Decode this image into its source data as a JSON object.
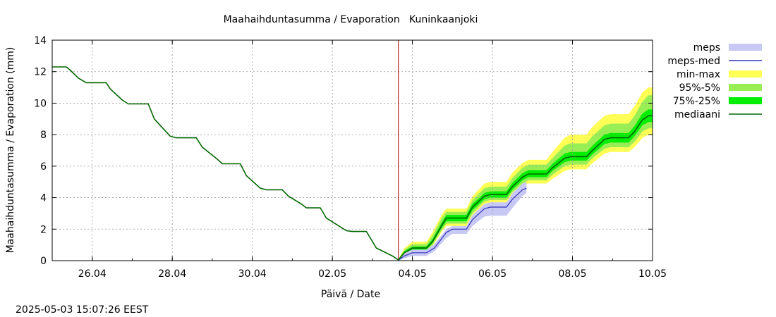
{
  "chart_data": {
    "type": "area",
    "title": "Maahaihduntasumma / Evaporation   Kuninkaanjoki",
    "xlabel": "Päivä / Date",
    "ylabel": "Maahaihduntasumma / Evaporation (mm)",
    "ylim": [
      0,
      14
    ],
    "yticks": [
      "0",
      "2",
      "4",
      "6",
      "8",
      "10",
      "12",
      "14"
    ],
    "xlim_days": [
      0,
      15
    ],
    "xticks": [
      {
        "day": 1,
        "label": "26.04"
      },
      {
        "day": 3,
        "label": "28.04"
      },
      {
        "day": 5,
        "label": "30.04"
      },
      {
        "day": 7,
        "label": "02.05"
      },
      {
        "day": 9,
        "label": "04.05"
      },
      {
        "day": 11,
        "label": "06.05"
      },
      {
        "day": 13,
        "label": "08.05"
      },
      {
        "day": 15,
        "label": "10.05"
      }
    ],
    "grid": true,
    "forecast_start_day": 8.65,
    "legend": [
      "meps",
      "meps-med",
      "min-max",
      "95%-5%",
      "75%-25%",
      "mediaani"
    ],
    "colors": {
      "meps": "#c8c8f5",
      "meps_med": "#3333bb",
      "minmax": "#ffff55",
      "p95": "#99ee55",
      "p75": "#00ee00",
      "median": "#006600",
      "now": "#aa0000"
    },
    "history": {
      "x": [
        0,
        0.35,
        0.45,
        0.65,
        0.85,
        1.35,
        1.45,
        1.75,
        1.9,
        2.4,
        2.55,
        2.95,
        3.1,
        3.6,
        3.75,
        4.1,
        4.25,
        4.7,
        4.85,
        5.2,
        5.35,
        5.75,
        5.9,
        6.25,
        6.35,
        6.7,
        6.85,
        7.35,
        7.5,
        7.85,
        8.1,
        8.5,
        8.65
      ],
      "y": [
        12.3,
        12.3,
        12.1,
        11.6,
        11.3,
        11.3,
        10.9,
        10.2,
        9.95,
        9.95,
        9.0,
        7.9,
        7.8,
        7.8,
        7.2,
        6.5,
        6.15,
        6.15,
        5.4,
        4.6,
        4.5,
        4.5,
        4.1,
        3.55,
        3.35,
        3.35,
        2.7,
        1.9,
        1.85,
        1.85,
        0.8,
        0.3,
        0.05
      ]
    },
    "forecast": {
      "x": [
        8.65,
        8.8,
        9.0,
        9.35,
        9.5,
        9.75,
        9.85,
        10.35,
        10.5,
        10.8,
        10.95,
        11.35,
        11.5,
        11.75,
        11.9,
        12.35,
        12.5,
        12.8,
        12.95,
        13.35,
        13.5,
        13.8,
        13.95,
        14.4,
        14.55,
        14.75,
        14.9,
        15.0
      ],
      "median": [
        0.05,
        0.5,
        0.8,
        0.8,
        1.2,
        2.3,
        2.7,
        2.7,
        3.4,
        4.1,
        4.2,
        4.2,
        4.7,
        5.3,
        5.5,
        5.5,
        5.9,
        6.5,
        6.6,
        6.6,
        7.0,
        7.7,
        7.8,
        7.8,
        8.2,
        8.95,
        9.2,
        9.2
      ],
      "min": [
        0.0,
        0.2,
        0.5,
        0.5,
        0.9,
        1.9,
        2.2,
        2.2,
        2.9,
        3.6,
        3.7,
        3.7,
        4.2,
        4.7,
        4.9,
        4.9,
        5.2,
        5.7,
        5.8,
        5.8,
        6.2,
        6.8,
        6.9,
        6.9,
        7.2,
        7.8,
        8.0,
        8.0
      ],
      "max": [
        0.1,
        0.8,
        1.2,
        1.2,
        1.8,
        3.0,
        3.3,
        3.3,
        4.1,
        4.9,
        5.0,
        5.0,
        5.6,
        6.2,
        6.4,
        6.4,
        6.9,
        7.8,
        8.0,
        8.0,
        8.5,
        9.2,
        9.3,
        9.3,
        9.8,
        10.7,
        11.0,
        11.0
      ],
      "p5": [
        0.0,
        0.3,
        0.6,
        0.6,
        1.0,
        2.0,
        2.35,
        2.35,
        3.0,
        3.75,
        3.85,
        3.85,
        4.35,
        4.9,
        5.1,
        5.1,
        5.45,
        6.0,
        6.1,
        6.1,
        6.5,
        7.1,
        7.2,
        7.2,
        7.55,
        8.2,
        8.4,
        8.4
      ],
      "p95": [
        0.1,
        0.7,
        1.05,
        1.05,
        1.6,
        2.8,
        3.1,
        3.1,
        3.85,
        4.6,
        4.7,
        4.7,
        5.25,
        5.9,
        6.1,
        6.1,
        6.5,
        7.3,
        7.45,
        7.45,
        7.9,
        8.6,
        8.7,
        8.7,
        9.2,
        10.1,
        10.5,
        10.5
      ],
      "p25": [
        0.03,
        0.4,
        0.7,
        0.7,
        1.1,
        2.15,
        2.5,
        2.5,
        3.2,
        3.9,
        4.0,
        4.0,
        4.5,
        5.1,
        5.3,
        5.3,
        5.7,
        6.25,
        6.35,
        6.35,
        6.75,
        7.4,
        7.5,
        7.5,
        7.9,
        8.6,
        8.8,
        8.8
      ],
      "p75": [
        0.07,
        0.6,
        0.9,
        0.9,
        1.35,
        2.5,
        2.9,
        2.9,
        3.6,
        4.3,
        4.4,
        4.4,
        4.95,
        5.55,
        5.75,
        5.75,
        6.15,
        6.8,
        6.9,
        6.9,
        7.3,
        8.0,
        8.1,
        8.1,
        8.55,
        9.35,
        9.6,
        9.6
      ],
      "meps_x": [
        8.65,
        8.8,
        9.0,
        9.35,
        9.55,
        9.85,
        10.0,
        10.35,
        10.5,
        10.8,
        10.95,
        11.35,
        11.5,
        11.75,
        11.85
      ],
      "meps_min": [
        0.0,
        0.15,
        0.3,
        0.3,
        0.6,
        1.45,
        1.7,
        1.7,
        2.2,
        2.8,
        2.85,
        2.85,
        3.35,
        4.1,
        4.3
      ],
      "meps_max": [
        0.05,
        0.5,
        0.7,
        0.7,
        1.05,
        2.0,
        2.2,
        2.2,
        2.9,
        3.6,
        3.7,
        3.7,
        4.3,
        4.9,
        5.0
      ],
      "meps_med": [
        0.03,
        0.3,
        0.5,
        0.5,
        0.8,
        1.8,
        2.0,
        2.0,
        2.6,
        3.3,
        3.4,
        3.4,
        3.9,
        4.5,
        4.6
      ]
    }
  },
  "timestamp": "2025-05-03 15:07:26 EEST"
}
